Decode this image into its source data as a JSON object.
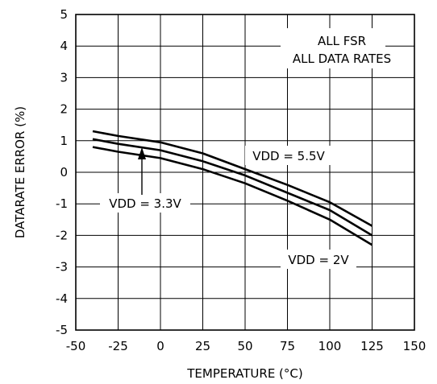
{
  "chart_data": {
    "type": "line",
    "xlabel": "TEMPERATURE (°C)",
    "ylabel": "DATARATE ERROR (%)",
    "xlim": [
      -50,
      150
    ],
    "ylim": [
      -5,
      5
    ],
    "x_ticks": [
      -50,
      -25,
      0,
      25,
      50,
      75,
      100,
      125,
      150
    ],
    "y_ticks": [
      -5,
      -4,
      -3,
      -2,
      -1,
      0,
      1,
      2,
      3,
      4,
      5
    ],
    "grid": true,
    "annotation_box": [
      "ALL FSR",
      "ALL DATA RATES"
    ],
    "series": [
      {
        "name": "VDD = 5.5V",
        "x": [
          -40,
          -25,
          0,
          25,
          50,
          75,
          100,
          125
        ],
        "y": [
          1.3,
          1.15,
          0.95,
          0.6,
          0.1,
          -0.4,
          -0.95,
          -1.7
        ]
      },
      {
        "name": "",
        "x": [
          -40,
          -25,
          0,
          25,
          50,
          75,
          100,
          125
        ],
        "y": [
          1.05,
          0.9,
          0.7,
          0.35,
          -0.1,
          -0.65,
          -1.2,
          -2.0
        ]
      },
      {
        "name": "VDD = 2V",
        "x": [
          -40,
          -25,
          0,
          25,
          50,
          75,
          100,
          125
        ],
        "y": [
          0.8,
          0.65,
          0.45,
          0.1,
          -0.35,
          -0.9,
          -1.5,
          -2.3
        ]
      }
    ],
    "labels": {
      "vdd55": "VDD = 5.5V",
      "vdd33": "VDD = 3.3V",
      "vdd2": "VDD = 2V"
    }
  }
}
